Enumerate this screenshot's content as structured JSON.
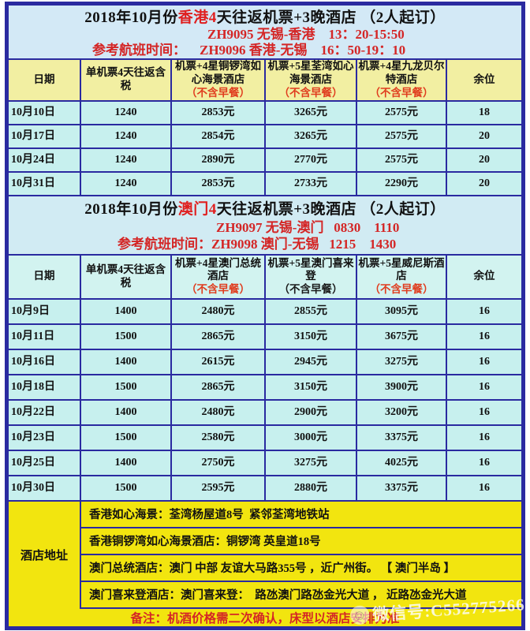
{
  "colors": {
    "border_navy": "#2a2aa0",
    "accent_red": "#d42626",
    "breakfast_note_red": "#e03c1e",
    "breakfast_note_black": "#1a1a1a",
    "header_yellow": "#f2efa2",
    "cell_cyan": "#c7f0ee",
    "address_yellow": "#f2e50f",
    "title_blue": "#d3e9f6"
  },
  "hk": {
    "title": {
      "prefix": "2018年10月份",
      "highlight": "香港4",
      "suffix": "天往返机票+3晚酒店 （2人起订）"
    },
    "flight_out": "ZH9095 无锡-香港    13：20-15:50",
    "flight_back": "参考航班时间：    ZH9096 香港-无锡    16：50-19：10",
    "columns": [
      {
        "name": "日期",
        "note": ""
      },
      {
        "name": "单机票4天往返含税",
        "note": ""
      },
      {
        "name": "机票+4星铜锣湾如心海景酒店",
        "note": "（不含早餐）",
        "note_color": "#e03c1e"
      },
      {
        "name": "机票+5星荃湾如心海景酒店",
        "note": "（不含早餐）",
        "note_color": "#e03c1e"
      },
      {
        "name": "机票+4星九龙贝尔特酒店",
        "note": "（不含早餐）",
        "note_color": "#e03c1e"
      },
      {
        "name": "余位",
        "note": ""
      }
    ],
    "rows": [
      [
        "10月10日",
        "1240",
        "2853元",
        "3265元",
        "2575元",
        "18"
      ],
      [
        "10月17日",
        "1240",
        "2854元",
        "3265元",
        "2575元",
        "20"
      ],
      [
        "10月24日",
        "1240",
        "2890元",
        "2770元",
        "2575元",
        "20"
      ],
      [
        "10月31日",
        "1240",
        "2853元",
        "2733元",
        "2290元",
        "20"
      ]
    ]
  },
  "mo": {
    "title": {
      "prefix": "2018年10月份",
      "highlight": "澳门4",
      "suffix": "天往返机票+3晚酒店 （2人起订）"
    },
    "flight_out": "ZH9097 无锡-澳门   0830    1110",
    "flight_back": "参考航班时间：ZH9098 澳门-无锡   1215    1430",
    "columns": [
      {
        "name": "日期",
        "note": ""
      },
      {
        "name": "单机票4天往返含税",
        "note": ""
      },
      {
        "name": "机票+4星澳门总统酒店",
        "note": "（不含早餐）",
        "note_color": "#e03c1e"
      },
      {
        "name": "机票+5星澳门喜来登",
        "note": "（不含早餐）",
        "note_color": "#1a1a1a"
      },
      {
        "name": "机票+5星威尼斯酒店",
        "note": "（不含早餐）",
        "note_color": "#e03c1e"
      },
      {
        "name": "余位",
        "note": ""
      }
    ],
    "rows": [
      [
        "10月9日",
        "1400",
        "2480元",
        "2855元",
        "3095元",
        "16"
      ],
      [
        "10月11日",
        "1500",
        "2865元",
        "3150元",
        "3675元",
        "16"
      ],
      [
        "10月16日",
        "1400",
        "2615元",
        "2945元",
        "3275元",
        "16"
      ],
      [
        "10月18日",
        "1500",
        "2865元",
        "3150元",
        "3900元",
        "16"
      ],
      [
        "10月22日",
        "1400",
        "2480元",
        "2900元",
        "3200元",
        "16"
      ],
      [
        "10月23日",
        "1500",
        "2580元",
        "3000元",
        "3375元",
        "16"
      ],
      [
        "10月25日",
        "1400",
        "2750元",
        "3275元",
        "4025元",
        "16"
      ],
      [
        "10月30日",
        "1500",
        "2595元",
        "2880元",
        "3375元",
        "16"
      ]
    ]
  },
  "address": {
    "label": "酒店地址",
    "rows": [
      "香港如心海景：荃湾杨屋道8号  紧邻荃湾地铁站",
      "香港铜锣湾如心海景酒店：铜锣湾 英皇道18号",
      "澳门总统酒店：澳门 中部 友谊大马路355号 ，近广州街。 【 澳门半岛 】",
      "澳门喜来登酒店：澳门喜来登：  路氹澳门路氹金光大道 ， 近路氹金光大道"
    ]
  },
  "footer": {
    "note": "备注：机酒价格需二次确认，床型以酒店安排为准"
  },
  "watermark": {
    "icon": "wechat-face-icon",
    "text": "微信号:C552775266"
  }
}
